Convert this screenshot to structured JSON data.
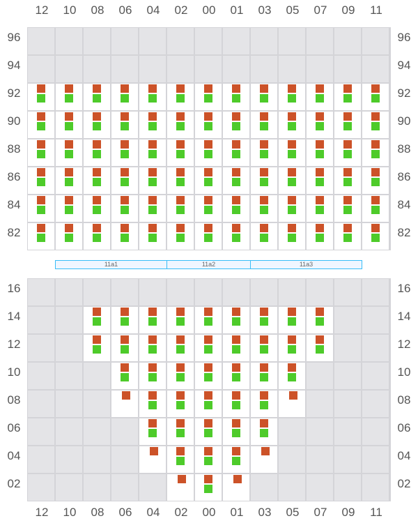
{
  "columns": [
    "12",
    "10",
    "08",
    "06",
    "04",
    "02",
    "00",
    "01",
    "03",
    "05",
    "07",
    "09",
    "11"
  ],
  "colors": {
    "orange": "#cc5228",
    "green": "#4ecb2a",
    "empty": "#e4e4e7",
    "grid_line": "#d4d4d8",
    "segment_border": "#38bdf8"
  },
  "legend_codes": {
    "g": "empty",
    "b": "orange-and-green",
    "o": "orange-only"
  },
  "top_grid": {
    "rows": [
      "96",
      "94",
      "92",
      "90",
      "88",
      "86",
      "84",
      "82"
    ],
    "cells": [
      "ggggggggggggg",
      "ggggggggggggg",
      "bbbbbbbbbbbbb",
      "bbbbbbbbbbbbb",
      "bbbbbbbbbbbbb",
      "bbbbbbbbbbbbb",
      "bbbbbbbbbbbbb",
      "bbbbbbbbbbbbb"
    ]
  },
  "segments": [
    {
      "label": "11a1",
      "span_columns": 4
    },
    {
      "label": "11a2",
      "span_columns": 3
    },
    {
      "label": "11a3",
      "span_columns": 4
    }
  ],
  "bottom_grid": {
    "rows": [
      "16",
      "14",
      "12",
      "10",
      "08",
      "06",
      "04",
      "02"
    ],
    "cells": [
      "ggggggggggggg",
      "ggbbbbbbbbbgg",
      "ggbbbbbbbbbgg",
      "gggbbbbbbbggg",
      "gggobbbbboggg",
      "ggggbbbbbgggg",
      "ggggobbbogggg",
      "gggggoboggggg"
    ]
  }
}
